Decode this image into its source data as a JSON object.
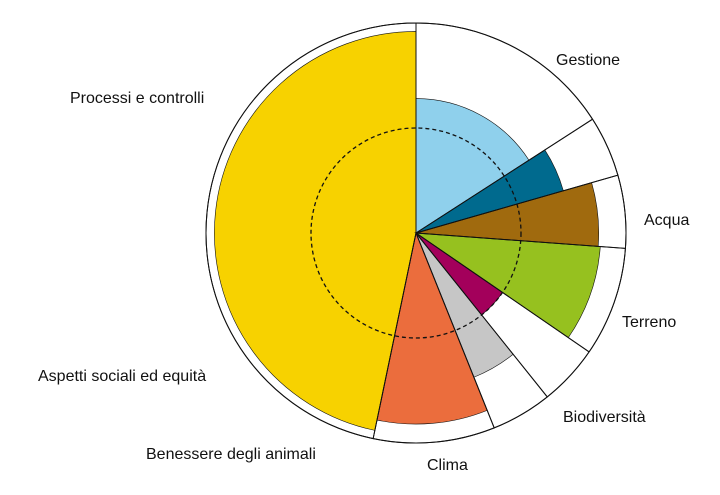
{
  "chart_data": {
    "type": "polar-area",
    "categories": [
      "Gestione",
      "Acqua",
      "Terreno",
      "Biodiversità",
      "Clima",
      "Benessere degli animali",
      "Aspetti sociali ed equità",
      "Processi e controlli"
    ],
    "weights": [
      17,
      5,
      6,
      9,
      5,
      5,
      10,
      50
    ],
    "values": [
      0.64,
      0.73,
      0.87,
      0.88,
      0.5,
      0.74,
      0.91,
      0.96
    ],
    "colors": [
      "#8fd0ec",
      "#006a8e",
      "#a06a0e",
      "#96c11f",
      "#a3005b",
      "#c6c6c6",
      "#eb6d3d",
      "#f7d200"
    ],
    "reference_level": 0.5,
    "max": 1.0
  }
}
